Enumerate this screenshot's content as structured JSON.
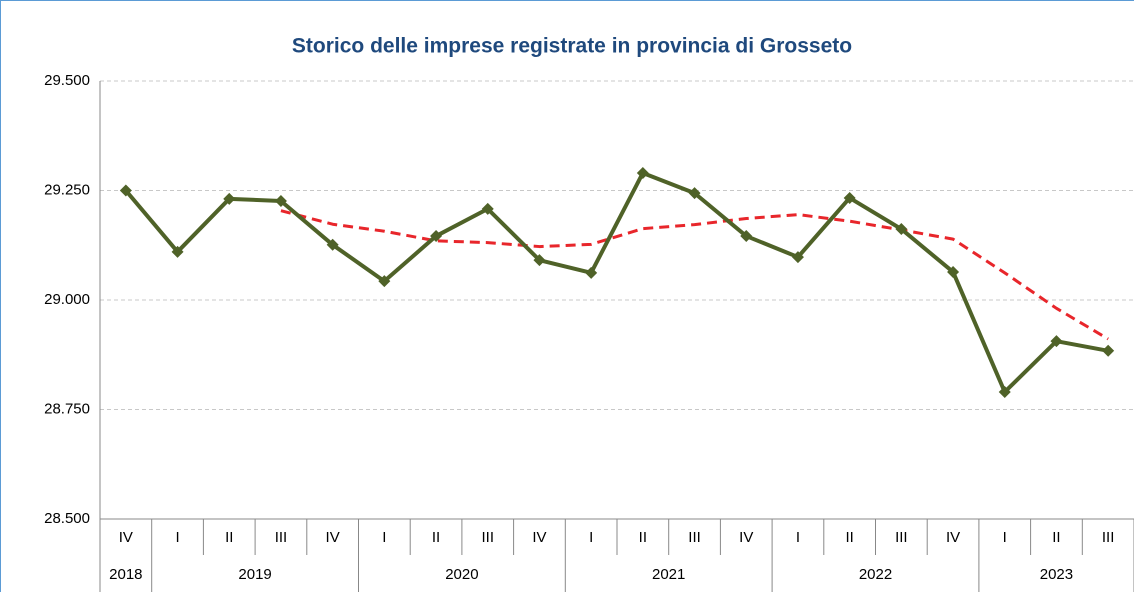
{
  "chart_data": {
    "type": "line",
    "title": "Storico delle imprese registrate in provincia di Grosseto",
    "categories": [
      "IV",
      "I",
      "II",
      "III",
      "IV",
      "I",
      "II",
      "III",
      "IV",
      "I",
      "II",
      "III",
      "IV",
      "I",
      "II",
      "III",
      "IV",
      "I",
      "II",
      "III"
    ],
    "years": [
      "2018",
      "2019",
      null,
      null,
      null,
      "2020",
      null,
      null,
      null,
      "2021",
      null,
      null,
      null,
      "2022",
      null,
      null,
      null,
      "2023",
      null,
      null
    ],
    "series": [
      {
        "color": "#4f6228",
        "values": [
          29250,
          29110,
          29231,
          29226,
          29126,
          29043,
          29146,
          29208,
          29091,
          29062,
          29290,
          29244,
          29146,
          29098,
          29233,
          29162,
          29064,
          28790,
          28906,
          28884
        ]
      },
      {
        "color": "#e8262b",
        "dashed": true,
        "values": [
          null,
          null,
          null,
          29204,
          29173,
          29157,
          29135,
          29131,
          29122,
          29127,
          29163,
          29172,
          29186,
          29195,
          29180,
          29160,
          29139,
          29062,
          28981,
          28911
        ]
      }
    ],
    "ylim": [
      28500,
      29500
    ],
    "yticks": [
      {
        "value": 28500,
        "label": "28.500"
      },
      {
        "value": 28750,
        "label": "28.750"
      },
      {
        "value": 29000,
        "label": "29.000"
      },
      {
        "value": 29250,
        "label": "29.250"
      },
      {
        "value": 29500,
        "label": "29.500"
      }
    ],
    "grid": true
  }
}
